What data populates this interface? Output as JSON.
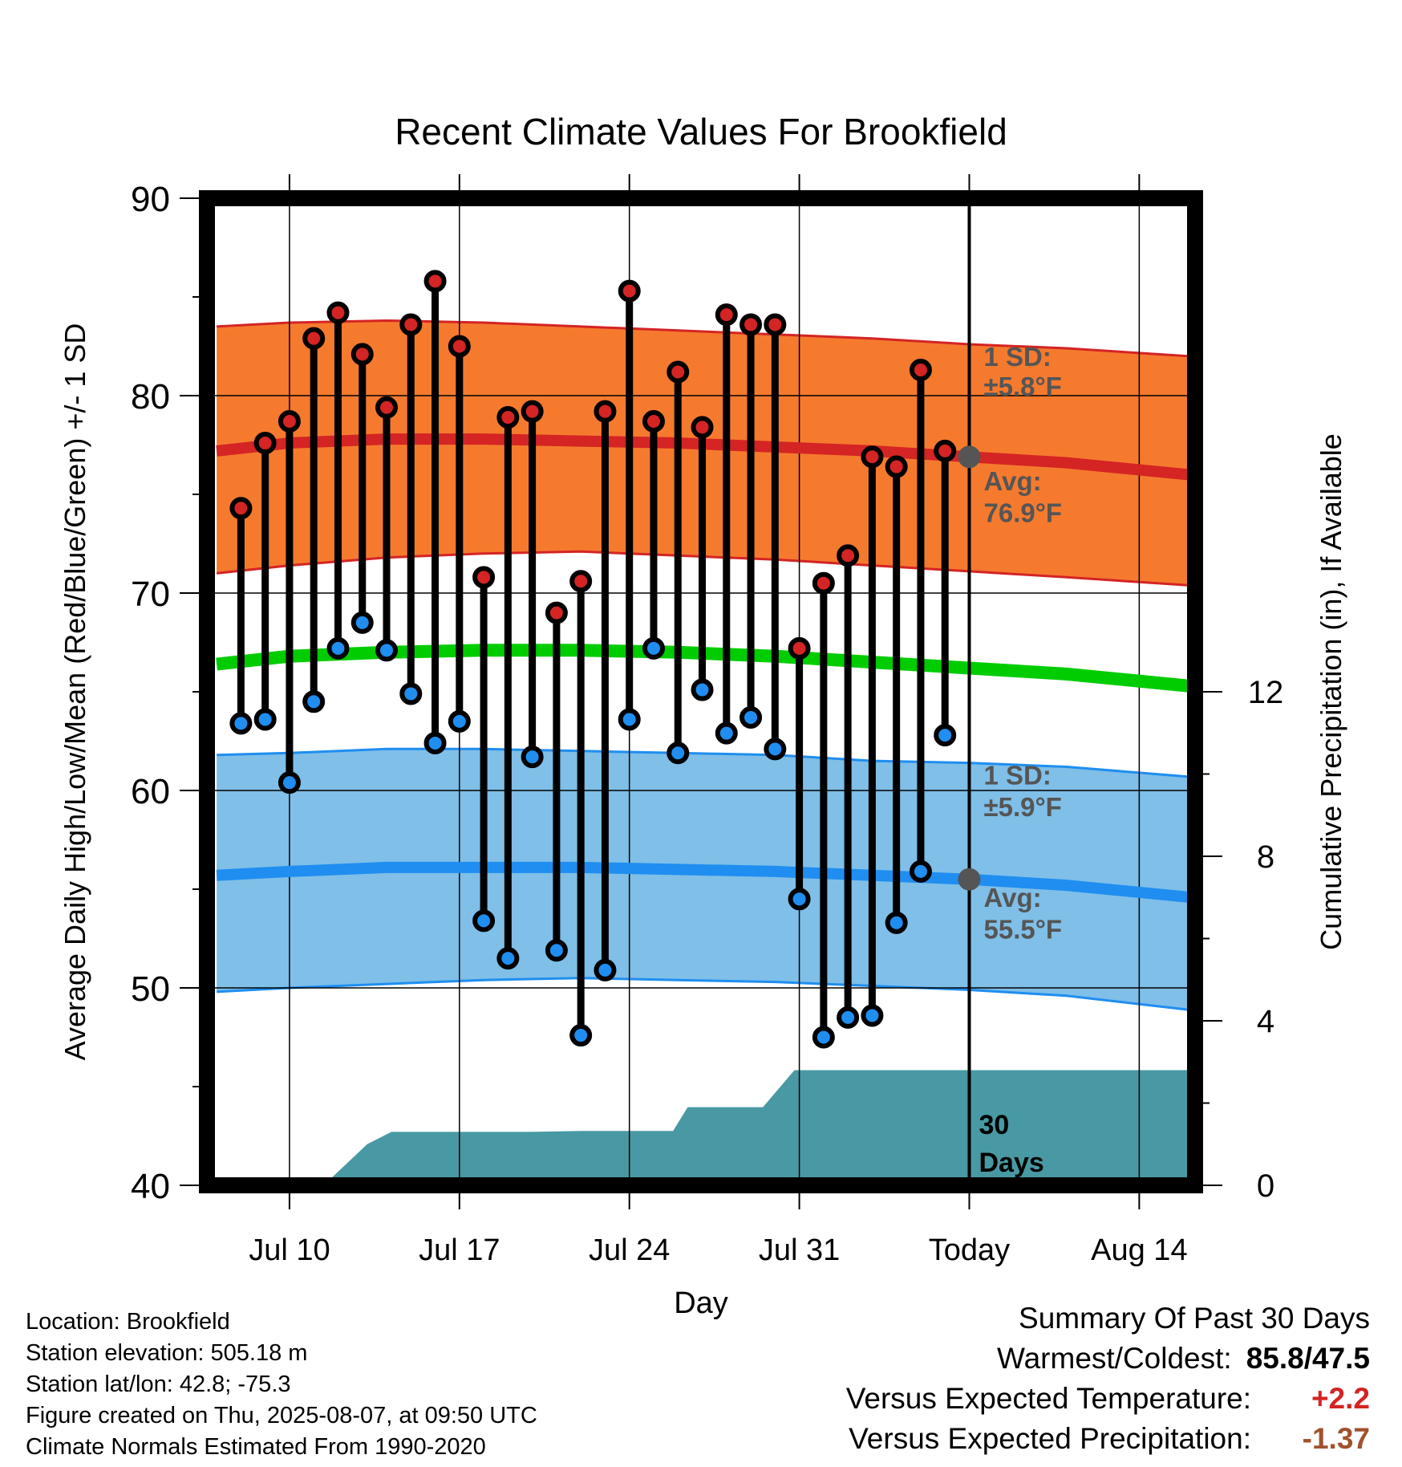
{
  "chart_data": {
    "type": "line",
    "title": "Recent Climate Values For Brookfield",
    "xlabel": "Day",
    "ylabel": "Average Daily High/Low/Mean (Red/Blue/Green) +/- 1 SD",
    "y2label": "Cumulative Precipitation (in), If Available",
    "ylim": [
      40,
      90
    ],
    "y2lim": [
      0,
      24
    ],
    "xlim": [
      -31.4,
      9.3
    ],
    "yticks": [
      "40",
      "50",
      "60",
      "70",
      "80",
      "90"
    ],
    "y2ticks": [
      "0",
      "4",
      "8",
      "12"
    ],
    "xticks": [
      {
        "day": -28,
        "label": "Jul 10"
      },
      {
        "day": -21,
        "label": "Jul 17"
      },
      {
        "day": -14,
        "label": "Jul 24"
      },
      {
        "day": -7,
        "label": "Jul 31"
      },
      {
        "day": 0,
        "label": "Today"
      },
      {
        "day": 7,
        "label": "Aug 14"
      }
    ],
    "grid": true,
    "days": [
      -30,
      -29,
      -28,
      -27,
      -26,
      -25,
      -24,
      -23,
      -22,
      -21,
      -20,
      -19,
      -18,
      -17,
      -16,
      -15,
      -14,
      -13,
      -12,
      -11,
      -10,
      -9,
      -8,
      -7,
      -6,
      -5,
      -4,
      -3,
      -2,
      -1
    ],
    "highs": [
      74.3,
      77.6,
      78.7,
      82.9,
      84.2,
      82.1,
      79.4,
      83.6,
      85.8,
      82.5,
      70.8,
      78.9,
      79.2,
      69.0,
      70.6,
      79.2,
      85.3,
      78.7,
      81.2,
      78.4,
      84.1,
      83.6,
      83.6,
      67.2,
      70.5,
      71.9,
      76.9,
      76.4,
      81.3,
      77.2
    ],
    "lows": [
      63.4,
      63.6,
      60.4,
      64.5,
      67.2,
      68.5,
      67.1,
      64.9,
      62.4,
      63.5,
      53.4,
      51.5,
      61.7,
      51.9,
      47.6,
      50.9,
      63.6,
      67.2,
      61.9,
      65.1,
      62.9,
      63.7,
      62.1,
      54.5,
      47.5,
      48.5,
      48.6,
      53.3,
      55.9,
      62.8
    ],
    "normal_high": {
      "name": "Avg: 76.9°F",
      "sd": "1 SD: ±5.8°F",
      "x": [
        -31,
        -28,
        -24,
        -20,
        -16,
        -12,
        -8,
        -4,
        0,
        4,
        9
      ],
      "avg": [
        77.2,
        77.6,
        77.8,
        77.8,
        77.7,
        77.6,
        77.4,
        77.2,
        76.9,
        76.6,
        76.0
      ],
      "upper": [
        83.5,
        83.7,
        83.8,
        83.7,
        83.5,
        83.3,
        83.1,
        82.9,
        82.6,
        82.4,
        82.0
      ],
      "lower": [
        71.0,
        71.4,
        71.8,
        72.0,
        72.1,
        71.9,
        71.7,
        71.4,
        71.1,
        70.8,
        70.4
      ]
    },
    "normal_low": {
      "name": "Avg: 55.5°F",
      "sd": "1 SD: ±5.9°F",
      "x": [
        -31,
        -28,
        -24,
        -20,
        -16,
        -12,
        -8,
        -4,
        0,
        4,
        9
      ],
      "avg": [
        55.7,
        55.9,
        56.1,
        56.1,
        56.1,
        56.0,
        55.9,
        55.7,
        55.5,
        55.2,
        54.6
      ],
      "upper": [
        61.8,
        61.9,
        62.1,
        62.1,
        62.0,
        61.9,
        61.8,
        61.5,
        61.4,
        61.2,
        60.7
      ],
      "lower": [
        49.8,
        50.0,
        50.2,
        50.4,
        50.5,
        50.4,
        50.3,
        50.1,
        49.9,
        49.6,
        48.9
      ]
    },
    "normal_mean": {
      "x": [
        -31,
        -28,
        -24,
        -20,
        -16,
        -12,
        -8,
        -4,
        0,
        4,
        9
      ],
      "avg": [
        66.4,
        66.8,
        67.0,
        67.1,
        67.1,
        67.0,
        66.8,
        66.5,
        66.2,
        65.9,
        65.3
      ]
    },
    "precip": {
      "x": [
        -31.4,
        -26.5,
        -24.8,
        -23.8,
        -22,
        -18,
        -16,
        -13,
        -12.2,
        -11.6,
        -10.3,
        -8.5,
        -7.2,
        -6.8,
        -4,
        0,
        4,
        9.3
      ],
      "y": [
        0.05,
        0.05,
        1.0,
        1.3,
        1.3,
        1.3,
        1.32,
        1.32,
        1.32,
        1.9,
        1.9,
        1.9,
        2.8,
        2.8,
        2.8,
        2.8,
        2.8,
        2.8
      ]
    },
    "today_label": "30 Days",
    "colors": {
      "high_band": "#f57a2e",
      "high_line": "#d42424",
      "low_band": "#7fbfe8",
      "low_line": "#1f8ef0",
      "mean_line": "#00cc00",
      "precip": "#4899a3",
      "high_dot": "#d42424",
      "low_dot": "#1f8ef0",
      "label": "#555555"
    }
  },
  "info": {
    "location": "Location: Brookfield",
    "elevation": "Station elevation: 505.18 m",
    "latlon": "Station lat/lon: 42.8; -75.3",
    "created": "Figure created on Thu, 2025-08-07, at 09:50 UTC",
    "normals": "Climate Normals Estimated From 1990-2020"
  },
  "summary": {
    "title": "Summary Of Past 30 Days",
    "warm_label": "Warmest/Coldest:",
    "warm_value": "85.8/47.5",
    "temp_label": "Versus Expected Temperature:",
    "temp_value": "+2.2",
    "temp_color": "#d42424",
    "precip_label": "Versus Expected Precipitation:",
    "precip_value": "-1.37",
    "precip_color": "#a0522d"
  }
}
